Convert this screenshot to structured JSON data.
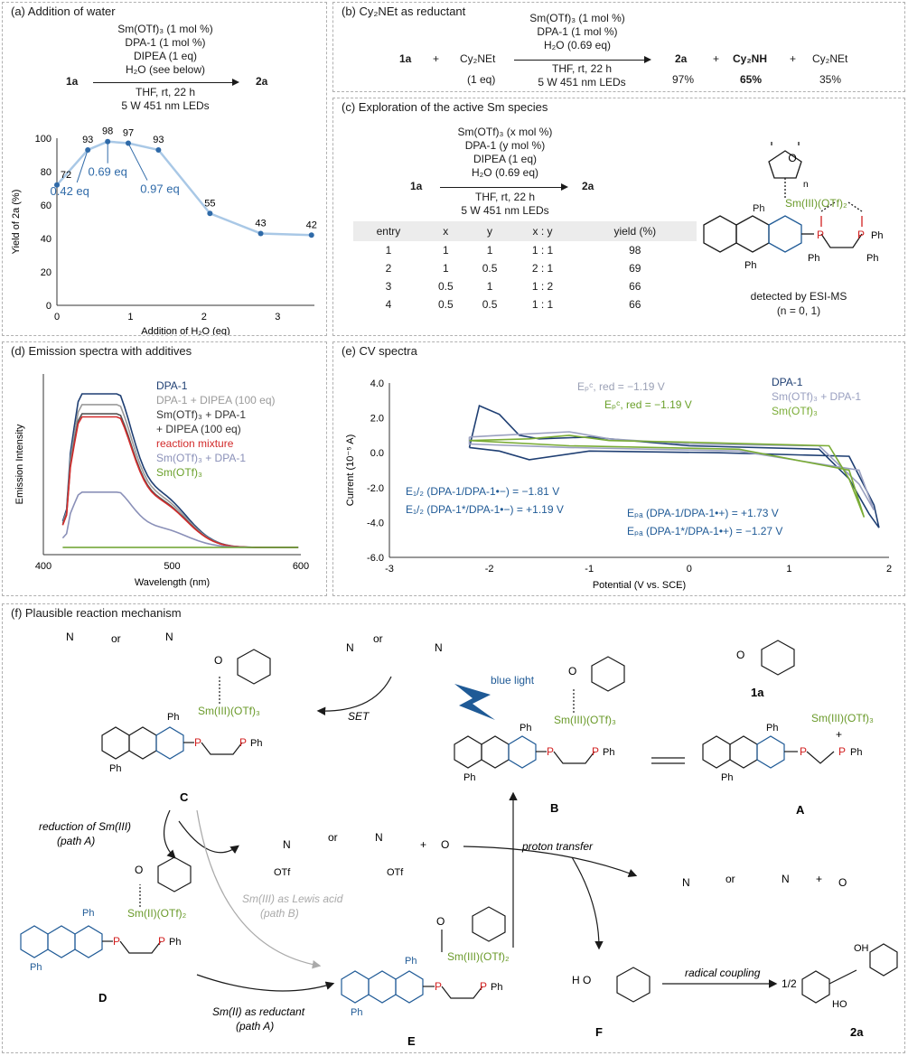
{
  "panel_a": {
    "title": "(a) Addition of water",
    "cond": [
      "Sm(OTf)₃ (1 mol %)",
      "DPA-1 (1 mol %)",
      "DIPEA (1 eq)",
      "H₂O (see below)"
    ],
    "reactant": "1a",
    "product": "2a",
    "below": [
      "THF, rt, 22 h",
      "5 W 451 nm LEDs"
    ],
    "annot": [
      "0.42 eq",
      "0.69 eq",
      "0.97 eq"
    ]
  },
  "panel_b": {
    "title": "(b) Cy₂NEt as reductant",
    "cond": [
      "Sm(OTf)₃ (1 mol %)",
      "DPA-1 (1 mol %)",
      "H₂O (0.69 eq)"
    ],
    "below": [
      "THF, rt, 22 h",
      "5 W 451 nm LEDs"
    ],
    "r1": "1a",
    "plus": "+",
    "r2": "Cy₂NEt",
    "r2_eq": "(1 eq)",
    "p1": "2a",
    "p1_y": "97%",
    "p2": "Cy₂NH",
    "p2_y": "65%",
    "p3": "Cy₂NEt",
    "p3_y": "35%"
  },
  "panel_c": {
    "title": "(c) Exploration of the active Sm species",
    "cond": [
      "Sm(OTf)₃ (x mol %)",
      "DPA-1 (y mol %)",
      "DIPEA (1 eq)",
      "H₂O (0.69 eq)"
    ],
    "below": [
      "THF, rt, 22 h",
      "5 W 451 nm LEDs"
    ],
    "reactant": "1a",
    "product": "2a",
    "headers": [
      "entry",
      "x",
      "y",
      "x : y",
      "yield (%)"
    ],
    "rows": [
      [
        "1",
        "1",
        "1",
        "1 : 1",
        "98"
      ],
      [
        "2",
        "1",
        "0.5",
        "2 : 1",
        "69"
      ],
      [
        "3",
        "0.5",
        "1",
        "1 : 2",
        "66"
      ],
      [
        "4",
        "0.5",
        "0.5",
        "1 : 1",
        "66"
      ]
    ],
    "detected": "detected by ESI-MS",
    "n": "(n = 0, 1)",
    "sm": "Sm(III)(OTf)₂",
    "ph": "Ph",
    "sub_n": "n"
  },
  "panel_d": {
    "title": "(d) Emission spectra with additives",
    "legend": [
      "DPA-1",
      "DPA-1 + DIPEA (100 eq)",
      "Sm(OTf)₃ + DPA-1",
      "+ DIPEA (100 eq)",
      "reaction mixture",
      "Sm(OTf)₃ + DPA-1",
      "Sm(OTf)₃"
    ]
  },
  "panel_e": {
    "title": "(e) CV spectra",
    "legend": [
      "DPA-1",
      "Sm(OTf)₃ + DPA-1",
      "Sm(OTf)₃"
    ],
    "epc1": "Eₚᶜ, red = −1.19 V",
    "epc2": "Eₚᶜ, red = −1.19 V",
    "e12a": "E₁/₂ (DPA-1/DPA-1•−) = −1.81 V",
    "e12b": "E₁/₂ (DPA-1*/DPA-1•−) = +1.19 V",
    "epa1": "Eₚₐ (DPA-1/DPA-1•+) = +1.73 V",
    "epa2": "Eₚₐ (DPA-1*/DPA-1•+) = −1.27 V"
  },
  "panel_f": {
    "title": "(f) Plausible reaction mechanism",
    "or": "or",
    "plus": "+",
    "set": "SET",
    "blue_light": "blue light",
    "sm3": "Sm(III)(OTf)₃",
    "sm3b": "Sm(III)(OTf)₃",
    "sm3c": "Sm(III)(OTf)₃",
    "sm2": "Sm(II)(OTf)₂",
    "sm3e": "Sm(III)(OTf)₂",
    "labels": [
      "C",
      "B",
      "A",
      "D",
      "E",
      "F",
      "1a",
      "2a"
    ],
    "red_a": "reduction of Sm(III)",
    "path_a": "(path A)",
    "lewis": "Sm(III) as Lewis acid",
    "path_b": "(path B)",
    "sm2_red": "Sm(II) as reductant",
    "path_a2": "(path A)",
    "proton": "proton transfer",
    "radical": "radical coupling",
    "half": "1/2",
    "otf": "OTf",
    "ph": "Ph"
  },
  "chart_data": [
    {
      "type": "line",
      "title": "",
      "xlabel": "Addition of H₂O (eq)",
      "ylabel": "Yield of 2a (%)",
      "xlim": [
        0,
        3.5
      ],
      "ylim": [
        0,
        100
      ],
      "xticks": [
        "0",
        "1",
        "2",
        "3"
      ],
      "yticks": [
        "0",
        "20",
        "40",
        "60",
        "80",
        "100"
      ],
      "x": [
        0,
        0.42,
        0.69,
        0.97,
        1.38,
        2.08,
        2.77,
        3.46
      ],
      "y": [
        72,
        93,
        98,
        97,
        93,
        55,
        43,
        42
      ],
      "labels": [
        "72",
        "93",
        "98",
        "97",
        "93",
        "55",
        "43",
        "42"
      ]
    },
    {
      "type": "line",
      "title": "",
      "xlabel": "Wavelength (nm)",
      "ylabel": "Emission Intensity",
      "xlim": [
        400,
        600
      ],
      "xticks": [
        "400",
        "500",
        "600"
      ],
      "series": [
        {
          "name": "DPA-1",
          "color": "#1f3f73",
          "peak": 1.0
        },
        {
          "name": "DPA-1 + DIPEA (100 eq)",
          "color": "#9a9a9a",
          "peak": 0.93
        },
        {
          "name": "Sm(OTf)₃ + DPA-1 + DIPEA (100 eq)",
          "color": "#555555",
          "peak": 0.87
        },
        {
          "name": "reaction mixture",
          "color": "#d22a2a",
          "peak": 0.85
        },
        {
          "name": "Sm(OTf)₃ + DPA-1",
          "color": "#8a90b8",
          "peak": 0.36
        },
        {
          "name": "Sm(OTf)₃",
          "color": "#6aa02a",
          "peak": 0.0
        }
      ]
    },
    {
      "type": "line",
      "title": "",
      "xlabel": "Potential (V vs. SCE)",
      "ylabel": "Current (10⁻⁵ A)",
      "xlim": [
        -3,
        2
      ],
      "ylim": [
        -6,
        4
      ],
      "xticks": [
        "-3",
        "-2",
        "-1",
        "0",
        "1",
        "2"
      ],
      "yticks": [
        "4.0",
        "2.0",
        "0.0",
        "-2.0",
        "-4.0",
        "-6.0"
      ],
      "series": [
        {
          "name": "DPA-1",
          "color": "#1f3f73"
        },
        {
          "name": "Sm(OTf)₃ + DPA-1",
          "color": "#9aa0c0"
        },
        {
          "name": "Sm(OTf)₃",
          "color": "#7aac35"
        }
      ]
    }
  ]
}
